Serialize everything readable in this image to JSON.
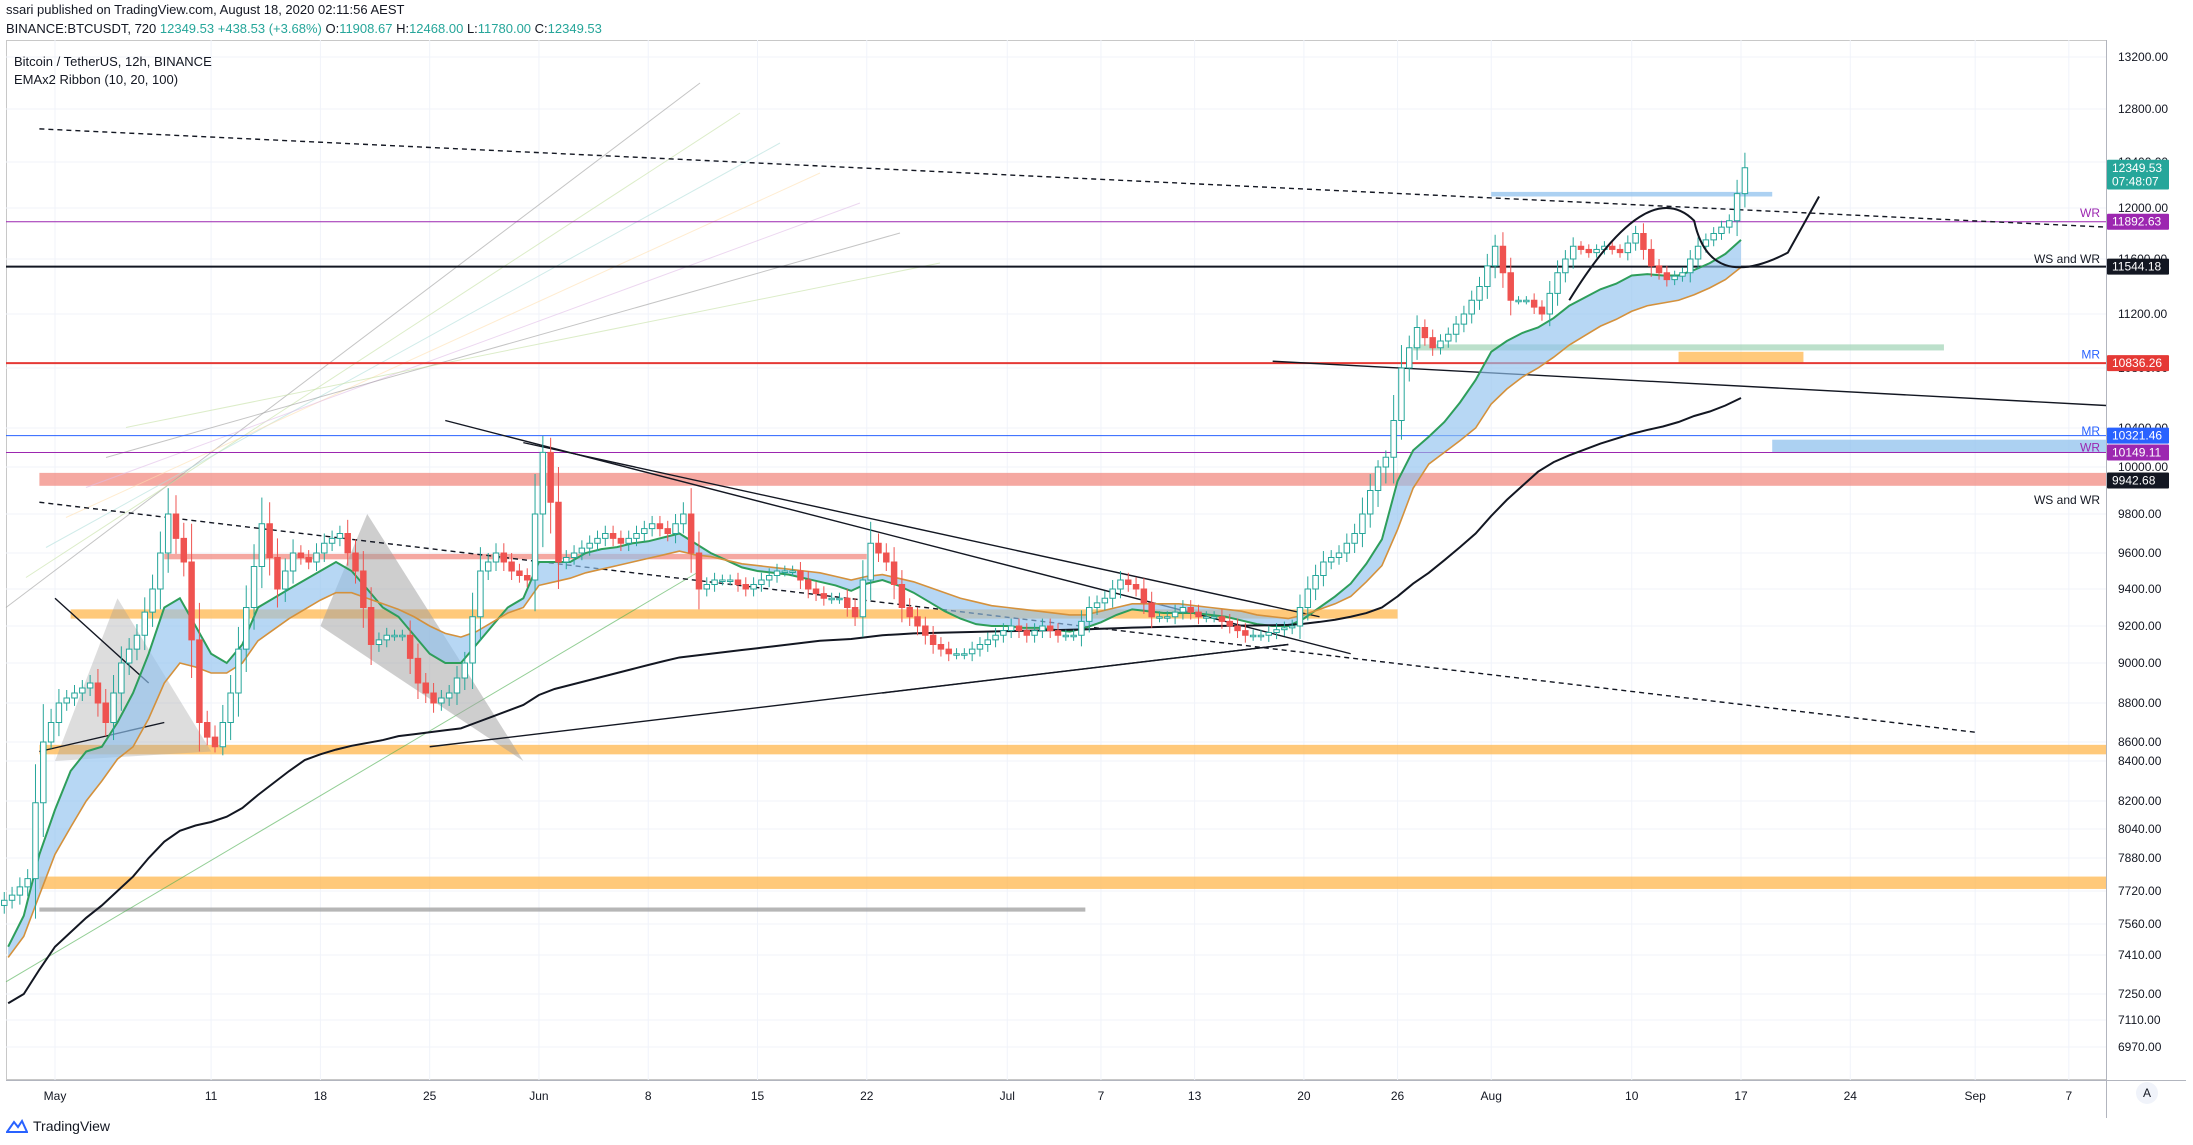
{
  "header": {
    "published": "ssari published on TradingView.com, August 18, 2020 02:11:56 AEST",
    "symbol": "BINANCE:BTCUSDT, 720",
    "last": "12349.53",
    "change": "+438.53 (+3.68%)",
    "open_label": "O:",
    "open": "11908.67",
    "high_label": "H:",
    "high": "12468.00",
    "low_label": "L:",
    "low": "11780.00",
    "close_label": "C:",
    "close": "12349.53"
  },
  "legend": {
    "title": "Bitcoin / TetherUS, 12h, BINANCE",
    "indicator": "EMAx2 Ribbon (10, 20, 100)"
  },
  "footer": {
    "brand": "TradingView"
  },
  "axis_button": "A",
  "colors": {
    "up": "#26a69a",
    "down": "#ef5350",
    "ribbon": "#90c2ee",
    "ema_fast": "#2e9e5b",
    "ema_slow": "#d4913c",
    "ema_long": "#131722",
    "orange_zone": "#ffb74d",
    "red_zone": "#f28b82",
    "purple": "#9c27b0",
    "blue": "#2962ff",
    "red": "#e53935"
  },
  "chart_data": {
    "type": "candlestick",
    "x_labels": [
      {
        "label": "May",
        "day": 1
      },
      {
        "label": "11",
        "day": 11
      },
      {
        "label": "18",
        "day": 18
      },
      {
        "label": "25",
        "day": 25
      },
      {
        "label": "Jun",
        "day": 32
      },
      {
        "label": "8",
        "day": 39
      },
      {
        "label": "15",
        "day": 46
      },
      {
        "label": "22",
        "day": 53
      },
      {
        "label": "Jul",
        "day": 62
      },
      {
        "label": "7",
        "day": 68
      },
      {
        "label": "13",
        "day": 74
      },
      {
        "label": "20",
        "day": 81
      },
      {
        "label": "26",
        "day": 87
      },
      {
        "label": "Aug",
        "day": 93
      },
      {
        "label": "10",
        "day": 102
      },
      {
        "label": "17",
        "day": 109
      },
      {
        "label": "24",
        "day": 116
      },
      {
        "label": "Sep",
        "day": 124
      },
      {
        "label": "7",
        "day": 130
      }
    ],
    "price_ticks": [
      "13200.00",
      "12800.00",
      "12400.00",
      "12000.00",
      "11600.00",
      "11200.00",
      "10800.00",
      "10400.00",
      "10000.00",
      "9800.00",
      "9600.00",
      "9400.00",
      "9200.00",
      "9000.00",
      "8800.00",
      "8600.00",
      "8400.00",
      "8200.00",
      "8040.00",
      "7880.00",
      "7720.00",
      "7560.00",
      "7410.00",
      "7250.00",
      "7110.00",
      "6970.00"
    ],
    "price_badges": [
      {
        "value": "12349.53",
        "price": 12349.53,
        "color": "#26a69a"
      },
      {
        "value": "07:48:07",
        "price": 12230,
        "color": "#26a69a"
      },
      {
        "value": "11892.63",
        "price": 11892.63,
        "color": "#9c27b0"
      },
      {
        "value": "11544.18",
        "price": 11544.18,
        "color": "#131722"
      },
      {
        "value": "10836.26",
        "price": 10836.26,
        "color": "#e53935"
      },
      {
        "value": "10321.46",
        "price": 10321.46,
        "color": "#2962ff"
      },
      {
        "value": "10149.11",
        "price": 10149.11,
        "color": "#9c27b0"
      },
      {
        "value": "9942.68",
        "price": 9942.68,
        "color": "#131722"
      }
    ],
    "level_labels": [
      {
        "text": "WR",
        "price": 11960,
        "color": "#9c27b0"
      },
      {
        "text": "WS and WR",
        "price": 11600,
        "color": "#131722"
      },
      {
        "text": "MR",
        "price": 10900,
        "color": "#2962ff"
      },
      {
        "text": "MR",
        "price": 10370,
        "color": "#2962ff"
      },
      {
        "text": "WR",
        "price": 10200,
        "color": "#9c27b0"
      },
      {
        "text": "WS and WR",
        "price": 9860,
        "color": "#131722"
      }
    ],
    "horizontal_levels": [
      {
        "price": 11892.63,
        "color": "#9c27b0",
        "from_day": 0
      },
      {
        "price": 11544.18,
        "color": "#131722",
        "from_day": 0
      },
      {
        "price": 10836.26,
        "color": "#e53935",
        "from_day": 0
      },
      {
        "price": 10321.46,
        "color": "#2962ff",
        "from_day": 0
      },
      {
        "price": 10149.11,
        "color": "#9c27b0",
        "from_day": 0
      }
    ],
    "zones": [
      {
        "from": 9920,
        "to": 9975,
        "day_from": 0,
        "day_to": 140,
        "color": "#f28b82"
      },
      {
        "from": 8470,
        "to": 8570,
        "day_from": 0,
        "day_to": 140,
        "color": "#ffb74d"
      },
      {
        "from": 7730,
        "to": 7790,
        "day_from": 0,
        "day_to": 140,
        "color": "#ffb74d"
      },
      {
        "from": 9240,
        "to": 9290,
        "day_from": 2,
        "day_to": 87,
        "color": "#ffb74d"
      },
      {
        "from": 9565,
        "to": 9595,
        "day_from": 8,
        "day_to": 53,
        "color": "#f28b82"
      },
      {
        "from": 7620,
        "to": 7640,
        "day_from": 0,
        "day_to": 67,
        "color": "#9e9e9e"
      },
      {
        "from": 10840,
        "to": 10920,
        "day_from": 105,
        "day_to": 113,
        "color": "#ffb74d"
      },
      {
        "from": 10150,
        "to": 10280,
        "day_from": 111,
        "day_to": 140,
        "color": "#90c2ee"
      },
      {
        "from": 10930,
        "to": 10975,
        "day_from": 88,
        "day_to": 122,
        "color": "#a5d6b9"
      },
      {
        "from": 12100,
        "to": 12140,
        "day_from": 93,
        "day_to": 111,
        "color": "#90c2ee"
      }
    ],
    "series": {
      "dates": [
        "2020-04-28",
        "2020-04-29",
        "2020-04-30",
        "2020-05-01",
        "2020-05-02",
        "2020-05-03",
        "2020-05-04",
        "2020-05-05",
        "2020-05-06",
        "2020-05-07",
        "2020-05-08",
        "2020-05-09",
        "2020-05-10",
        "2020-05-11",
        "2020-05-12",
        "2020-05-13",
        "2020-05-14",
        "2020-05-15",
        "2020-05-16",
        "2020-05-17",
        "2020-05-18",
        "2020-05-19",
        "2020-05-20",
        "2020-05-21",
        "2020-05-22",
        "2020-05-23",
        "2020-05-24",
        "2020-05-25",
        "2020-05-26",
        "2020-05-27",
        "2020-05-28",
        "2020-05-29",
        "2020-05-30",
        "2020-05-31",
        "2020-06-01",
        "2020-06-02",
        "2020-06-03",
        "2020-06-04",
        "2020-06-05",
        "2020-06-06",
        "2020-06-07",
        "2020-06-08",
        "2020-06-09",
        "2020-06-10",
        "2020-06-11",
        "2020-06-12",
        "2020-06-13",
        "2020-06-14",
        "2020-06-15",
        "2020-06-16",
        "2020-06-17",
        "2020-06-18",
        "2020-06-19",
        "2020-06-20",
        "2020-06-21",
        "2020-06-22",
        "2020-06-23",
        "2020-06-24",
        "2020-06-25",
        "2020-06-26",
        "2020-06-27",
        "2020-06-28",
        "2020-06-29",
        "2020-06-30",
        "2020-07-01",
        "2020-07-02",
        "2020-07-03",
        "2020-07-04",
        "2020-07-05",
        "2020-07-06",
        "2020-07-07",
        "2020-07-08",
        "2020-07-09",
        "2020-07-10",
        "2020-07-11",
        "2020-07-12",
        "2020-07-13",
        "2020-07-14",
        "2020-07-15",
        "2020-07-16",
        "2020-07-17",
        "2020-07-18",
        "2020-07-19",
        "2020-07-20",
        "2020-07-21",
        "2020-07-22",
        "2020-07-23",
        "2020-07-24",
        "2020-07-25",
        "2020-07-26",
        "2020-07-27",
        "2020-07-28",
        "2020-07-29",
        "2020-07-30",
        "2020-07-31",
        "2020-08-01",
        "2020-08-02",
        "2020-08-03",
        "2020-08-04",
        "2020-08-05",
        "2020-08-06",
        "2020-08-07",
        "2020-08-08",
        "2020-08-09",
        "2020-08-10",
        "2020-08-11",
        "2020-08-12",
        "2020-08-13",
        "2020-08-14",
        "2020-08-15",
        "2020-08-16",
        "2020-08-17"
      ],
      "close": [
        7700,
        7780,
        8600,
        8800,
        8850,
        8900,
        8700,
        9000,
        9150,
        9400,
        9800,
        9550,
        8700,
        8550,
        8850,
        9300,
        9750,
        9400,
        9600,
        9550,
        9650,
        9700,
        9500,
        9100,
        9150,
        9150,
        8900,
        8800,
        8850,
        9000,
        9500,
        9600,
        9500,
        9450,
        10150,
        9550,
        9600,
        9650,
        9700,
        9650,
        9700,
        9750,
        9700,
        9800,
        9400,
        9450,
        9450,
        9400,
        9450,
        9500,
        9500,
        9400,
        9350,
        9350,
        9250,
        9650,
        9550,
        9300,
        9200,
        9100,
        9050,
        9050,
        9100,
        9150,
        9200,
        9150,
        9200,
        9150,
        9150,
        9300,
        9350,
        9450,
        9400,
        9250,
        9250,
        9300,
        9250,
        9250,
        9200,
        9150,
        9150,
        9180,
        9200,
        9400,
        9550,
        9600,
        9700,
        9900,
        10100,
        10800,
        11100,
        10950,
        11050,
        11200,
        11400,
        11700,
        11300,
        11300,
        11200,
        11500,
        11700,
        11650,
        11700,
        11650,
        11800,
        11550,
        11450,
        11500,
        11700,
        11800,
        11900,
        12350
      ],
      "ema_fast": [
        7450,
        7600,
        7900,
        8150,
        8350,
        8500,
        8550,
        8700,
        8850,
        9050,
        9300,
        9350,
        9200,
        9050,
        9000,
        9100,
        9300,
        9350,
        9400,
        9450,
        9500,
        9550,
        9500,
        9400,
        9300,
        9250,
        9150,
        9050,
        9000,
        9000,
        9100,
        9200,
        9300,
        9350,
        9550,
        9550,
        9550,
        9600,
        9620,
        9630,
        9650,
        9660,
        9680,
        9700,
        9650,
        9600,
        9560,
        9520,
        9500,
        9490,
        9480,
        9460,
        9440,
        9420,
        9390,
        9430,
        9450,
        9420,
        9380,
        9330,
        9280,
        9240,
        9210,
        9200,
        9200,
        9190,
        9190,
        9180,
        9170,
        9190,
        9220,
        9260,
        9290,
        9280,
        9270,
        9270,
        9270,
        9260,
        9250,
        9230,
        9210,
        9200,
        9200,
        9240,
        9300,
        9360,
        9430,
        9540,
        9670,
        9940,
        10170,
        10310,
        10440,
        10570,
        10720,
        10920,
        11000,
        11060,
        11100,
        11170,
        11260,
        11320,
        11380,
        11420,
        11480,
        11490,
        11480,
        11480,
        11520,
        11570,
        11640,
        11750
      ],
      "ema_slow": [
        7400,
        7500,
        7700,
        7900,
        8050,
        8200,
        8300,
        8420,
        8550,
        8720,
        8900,
        9000,
        8980,
        8950,
        8950,
        9000,
        9120,
        9180,
        9240,
        9290,
        9340,
        9380,
        9380,
        9350,
        9320,
        9290,
        9250,
        9200,
        9160,
        9140,
        9170,
        9220,
        9270,
        9300,
        9420,
        9440,
        9460,
        9490,
        9510,
        9530,
        9550,
        9570,
        9590,
        9610,
        9590,
        9580,
        9560,
        9540,
        9530,
        9520,
        9510,
        9500,
        9490,
        9470,
        9450,
        9470,
        9480,
        9460,
        9440,
        9410,
        9380,
        9350,
        9330,
        9310,
        9300,
        9290,
        9280,
        9270,
        9260,
        9260,
        9280,
        9300,
        9320,
        9320,
        9320,
        9320,
        9310,
        9300,
        9290,
        9280,
        9260,
        9250,
        9240,
        9260,
        9290,
        9320,
        9360,
        9440,
        9530,
        9720,
        9910,
        10030,
        10150,
        10270,
        10400,
        10560,
        10660,
        10740,
        10800,
        10880,
        10970,
        11040,
        11110,
        11160,
        11220,
        11260,
        11280,
        11300,
        11340,
        11390,
        11450,
        11540
      ],
      "ema_long": [
        7200,
        7250,
        7350,
        7450,
        7520,
        7590,
        7650,
        7720,
        7790,
        7880,
        7970,
        8030,
        8060,
        8080,
        8110,
        8160,
        8230,
        8290,
        8350,
        8410,
        8470,
        8520,
        8560,
        8590,
        8610,
        8630,
        8640,
        8650,
        8660,
        8670,
        8700,
        8730,
        8760,
        8790,
        8840,
        8870,
        8890,
        8910,
        8930,
        8950,
        8970,
        8990,
        9010,
        9030,
        9040,
        9050,
        9060,
        9070,
        9080,
        9090,
        9100,
        9110,
        9120,
        9125,
        9130,
        9140,
        9150,
        9155,
        9160,
        9162,
        9164,
        9166,
        9168,
        9170,
        9172,
        9174,
        9176,
        9178,
        9180,
        9182,
        9185,
        9188,
        9191,
        9193,
        9195,
        9197,
        9199,
        9200,
        9201,
        9202,
        9203,
        9204,
        9206,
        9212,
        9222,
        9234,
        9250,
        9270,
        9300,
        9360,
        9430,
        9490,
        9560,
        9630,
        9700,
        9790,
        9860,
        9920,
        9980,
        10050,
        10120,
        10180,
        10240,
        10290,
        10340,
        10380,
        10410,
        10440,
        10480,
        10510,
        10550,
        10600
      ]
    }
  }
}
